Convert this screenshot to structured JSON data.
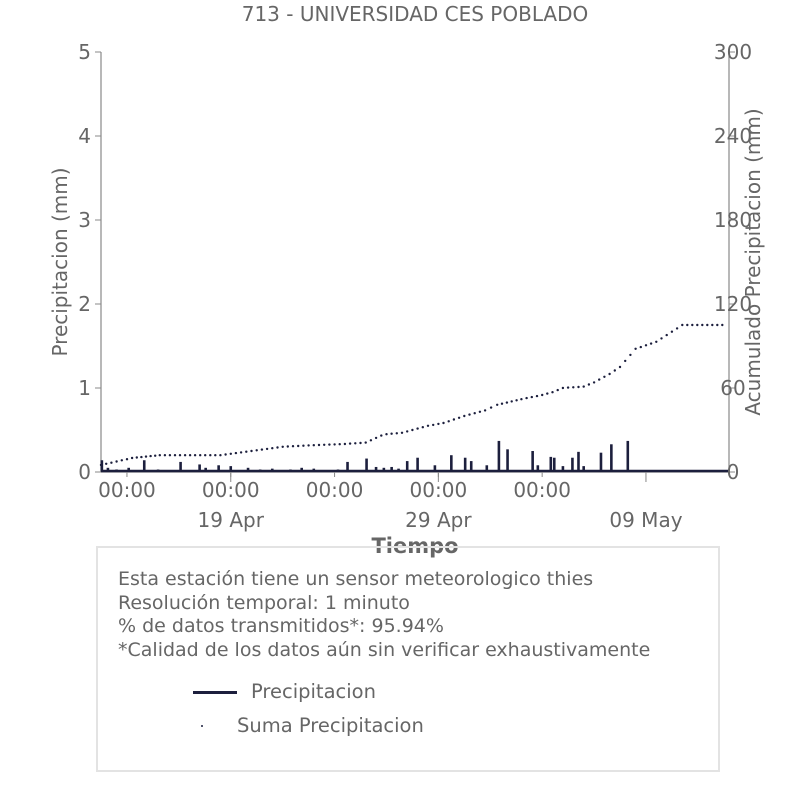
{
  "chart_data": {
    "type": "line",
    "title": "713 - UNIVERSIDAD CES POBLADO",
    "xlabel": "Tiempo",
    "ylabel": "Precipitacion (mm)",
    "y2label": "Acumulado Precipitacion (mm)",
    "ylim": [
      0,
      5
    ],
    "y2lim": [
      0,
      300
    ],
    "yticks": [
      "0",
      "1",
      "2",
      "3",
      "4",
      "5"
    ],
    "y2ticks": [
      "0",
      "60",
      "120",
      "180",
      "240",
      "300"
    ],
    "xlim": [
      "2024-04-12T18:00",
      "2024-05-13T00:00"
    ],
    "xticks_minor": [
      {
        "t": "2024-04-14T00:00",
        "label": "00:00"
      },
      {
        "t": "2024-04-19T00:00",
        "label": "00:00"
      },
      {
        "t": "2024-04-24T00:00",
        "label": "00:00"
      },
      {
        "t": "2024-04-29T00:00",
        "label": "00:00"
      },
      {
        "t": "2024-05-04T00:00",
        "label": "00:00"
      }
    ],
    "xticks_major": [
      {
        "t": "2024-04-19T00:00",
        "label": "19 Apr"
      },
      {
        "t": "2024-04-29T00:00",
        "label": "29 Apr"
      },
      {
        "t": "2024-05-09T00:00",
        "label": "09 May"
      }
    ],
    "grid": false,
    "series": [
      {
        "name": "Precipitacion",
        "axis": "left",
        "style": "solid",
        "color": "#1c1f3d",
        "x": [
          "2024-04-12T19:00",
          "2024-04-13T02:00",
          "2024-04-13T12:00",
          "2024-04-13T20:00",
          "2024-04-14T02:00",
          "2024-04-14T20:00",
          "2024-04-15T12:00",
          "2024-04-16T14:00",
          "2024-04-17T12:00",
          "2024-04-17T19:00",
          "2024-04-18T10:00",
          "2024-04-19T00:00",
          "2024-04-19T20:00",
          "2024-04-20T10:00",
          "2024-04-21T00:00",
          "2024-04-21T21:00",
          "2024-04-22T10:00",
          "2024-04-23T00:00",
          "2024-04-24T04:00",
          "2024-04-24T15:00",
          "2024-04-25T13:00",
          "2024-04-26T00:00",
          "2024-04-26T09:00",
          "2024-04-26T18:00",
          "2024-04-27T02:00",
          "2024-04-27T12:00",
          "2024-04-28T00:00",
          "2024-04-28T20:00",
          "2024-04-29T15:00",
          "2024-04-30T07:00",
          "2024-04-30T14:00",
          "2024-05-01T08:00",
          "2024-05-01T22:00",
          "2024-05-02T08:00",
          "2024-05-03T13:00",
          "2024-05-03T19:00",
          "2024-05-04T10:00",
          "2024-05-04T14:00",
          "2024-05-05T00:00",
          "2024-05-05T11:00",
          "2024-05-05T18:00",
          "2024-05-06T00:00",
          "2024-05-06T20:00",
          "2024-05-07T08:00",
          "2024-05-08T03:00"
        ],
        "values": [
          0.14,
          0.05,
          0.03,
          0.02,
          0.05,
          0.14,
          0.03,
          0.12,
          0.09,
          0.05,
          0.08,
          0.07,
          0.05,
          0.03,
          0.04,
          0.03,
          0.05,
          0.04,
          0.03,
          0.12,
          0.16,
          0.06,
          0.05,
          0.06,
          0.04,
          0.13,
          0.17,
          0.08,
          0.2,
          0.17,
          0.13,
          0.08,
          0.37,
          0.27,
          0.25,
          0.08,
          0.18,
          0.17,
          0.07,
          0.17,
          0.24,
          0.07,
          0.23,
          0.33,
          0.37
        ]
      },
      {
        "name": "Suma Precipitacion",
        "axis": "right",
        "style": "dotted",
        "color": "#1c1f3d",
        "x": [
          "2024-04-12T18:00",
          "2024-04-14T06:00",
          "2024-04-15T14:00",
          "2024-04-18T12:00",
          "2024-04-19T12:00",
          "2024-04-21T12:00",
          "2024-04-22T18:00",
          "2024-04-24T12:00",
          "2024-04-25T12:00",
          "2024-04-26T06:00",
          "2024-04-26T12:00",
          "2024-04-27T06:00",
          "2024-04-28T00:00",
          "2024-04-28T12:00",
          "2024-04-29T06:00",
          "2024-04-30T06:00",
          "2024-05-01T06:00",
          "2024-05-01T20:00",
          "2024-05-03T00:00",
          "2024-05-04T00:00",
          "2024-05-04T12:00",
          "2024-05-05T00:00",
          "2024-05-06T00:00",
          "2024-05-06T12:00",
          "2024-05-07T06:00",
          "2024-05-07T18:00",
          "2024-05-08T12:00",
          "2024-05-09T12:00",
          "2024-05-10T18:00"
        ],
        "values": [
          5,
          10,
          12,
          12,
          14,
          18,
          19,
          20,
          21,
          26,
          27,
          28,
          31,
          33,
          35,
          40,
          44,
          48,
          52,
          55,
          57,
          60,
          61,
          64,
          70,
          75,
          88,
          93,
          105
        ]
      }
    ]
  },
  "info": {
    "lines": [
      "Esta estación tiene un sensor meteorologico thies",
      "Resolución temporal: 1 minuto",
      "% de datos transmitidos*: 95.94%",
      "*Calidad de los datos aún sin verificar exhaustivamente"
    ]
  },
  "legend": {
    "items": [
      {
        "label": "Precipitacion",
        "style": "line"
      },
      {
        "label": "Suma Precipitacion",
        "style": "dot"
      }
    ]
  },
  "colors": {
    "series": "#1c1f3d",
    "text": "#666666",
    "axis": "#888888",
    "box_border": "#e3e3e3"
  }
}
